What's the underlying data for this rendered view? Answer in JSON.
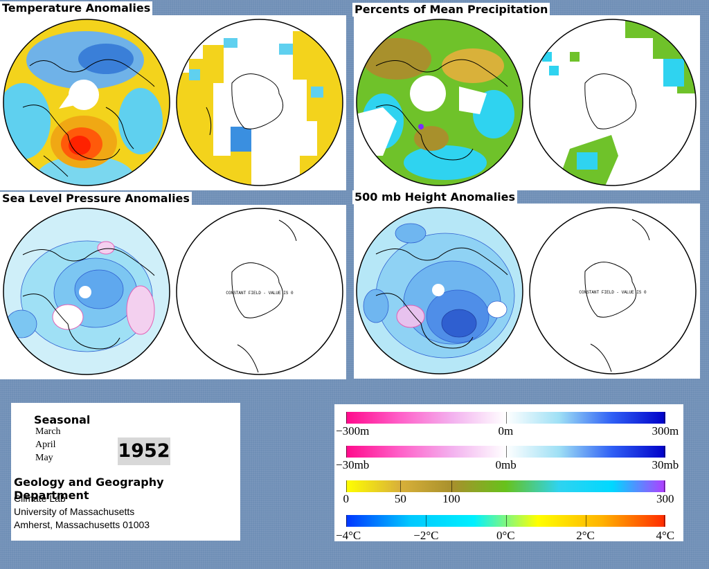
{
  "panels": {
    "temperature": {
      "title": "Temperature Anomalies"
    },
    "precipitation": {
      "title": "Percents of Mean Precipitation"
    },
    "sea_level_pressure": {
      "title": "Sea Level Pressure Anomalies",
      "south_note": "CONSTANT FIELD - VALUE IS 0"
    },
    "height_500mb": {
      "title": "500 mb Height Anomalies",
      "south_note": "CONSTANT FIELD - VALUE IS 0"
    }
  },
  "info": {
    "season_label": "Seasonal",
    "months": [
      "March",
      "April",
      "May"
    ],
    "year": "1952",
    "department": "Geology and Geography Department",
    "lines": [
      "Climate Lab",
      "University of Massachusetts",
      "Amherst, Massachusetts 01003"
    ]
  },
  "legend": {
    "scales": [
      {
        "name": "height",
        "labels": [
          "−300m",
          "0m",
          "300m"
        ],
        "stops": [
          "#ff0a8c",
          "#ff5fc8",
          "#f3b2ef",
          "#ffffff",
          "#9fe0f5",
          "#2f5ff5",
          "#0000c8"
        ]
      },
      {
        "name": "pressure",
        "labels": [
          "−30mb",
          "0mb",
          "30mb"
        ],
        "stops": [
          "#ff0a8c",
          "#ff5fc8",
          "#f3b2ef",
          "#ffffff",
          "#9fe0f5",
          "#2f5ff5",
          "#0000c8"
        ]
      },
      {
        "name": "precipitation",
        "labels": [
          "0",
          "50",
          "100",
          "300"
        ],
        "stops": [
          "#ffff00",
          "#d9b13a",
          "#a8902c",
          "#67c21c",
          "#2fd3f0",
          "#00d8ff",
          "#b23cff"
        ]
      },
      {
        "name": "temperature",
        "labels": [
          "−4°C",
          "−2°C",
          "0°C",
          "2°C",
          "4°C"
        ],
        "stops": [
          "#0036ff",
          "#00c8ff",
          "#00f0ff",
          "#ffff00",
          "#ffb300",
          "#ff2a00"
        ]
      }
    ]
  },
  "colors": {
    "background": "#6f8fb6",
    "warm_anomaly": "#ff3a00",
    "cool_anomaly": "#3a8fe0",
    "neutral_temp": "#f2d21a",
    "pressure_blue": "#2f5fd0",
    "pressure_pink": "#e35fb5"
  }
}
